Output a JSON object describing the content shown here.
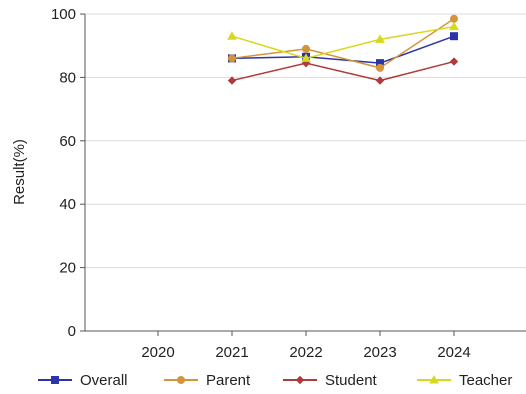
{
  "chart_data": {
    "type": "line",
    "title": "",
    "xlabel": "",
    "ylabel": "Result(%)",
    "categories": [
      "2020",
      "2021",
      "2022",
      "2023",
      "2024"
    ],
    "ylim": [
      0,
      100
    ],
    "yticks": [
      0,
      20,
      40,
      60,
      80,
      100
    ],
    "grid": true,
    "legend_position": "bottom",
    "series": [
      {
        "name": "Overall",
        "color": "#2b35a8",
        "marker": "square",
        "values": [
          null,
          86,
          86.5,
          84.5,
          93
        ]
      },
      {
        "name": "Parent",
        "color": "#d4943a",
        "marker": "circle",
        "values": [
          null,
          86,
          89,
          83,
          98.5
        ]
      },
      {
        "name": "Student",
        "color": "#b03a3a",
        "marker": "diamond",
        "values": [
          null,
          79,
          84.5,
          79,
          85
        ]
      },
      {
        "name": "Teacher",
        "color": "#d8d81e",
        "marker": "triangle",
        "values": [
          null,
          93,
          86,
          92,
          96
        ]
      }
    ]
  }
}
